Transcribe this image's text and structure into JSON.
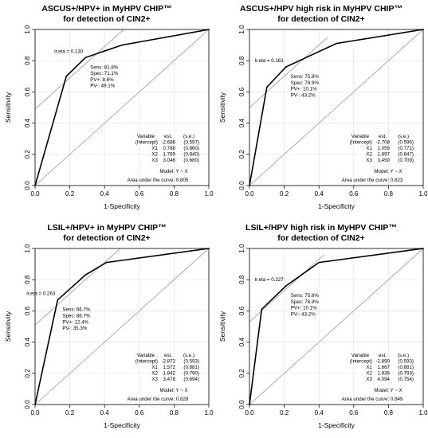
{
  "chart_data": [
    {
      "type": "line",
      "title": [
        "ASCUS+/HPV+ in MyHPV CHIP™",
        "for detection of CIN2+"
      ],
      "xlabel": "1-Specificity",
      "ylabel": "Sensitivity",
      "xlim": [
        0,
        1
      ],
      "ylim": [
        0,
        1
      ],
      "xticks": [
        "0.0",
        "0.2",
        "0.4",
        "0.6",
        "0.8",
        "1.0"
      ],
      "yticks": [
        "0.0",
        "0.2",
        "0.4",
        "0.6",
        "0.8",
        "1.0"
      ],
      "grid": true,
      "roc": {
        "x": [
          0,
          0.18,
          0.29,
          0.5,
          1.0
        ],
        "y": [
          0,
          0.7,
          0.82,
          0.9,
          1.0
        ]
      },
      "diagonal": {
        "x": [
          0,
          1
        ],
        "y": [
          0,
          1
        ]
      },
      "tangent": {
        "x": [
          0,
          0.7
        ],
        "y": [
          0.49,
          1.19
        ]
      },
      "cutoff": {
        "x": 0.29,
        "y": 0.82,
        "label": "lr.eta = 0.130",
        "stats": [
          "Sens: 81.8%",
          "Spec: 71.1%",
          "PV+: 8.6%",
          "PV-: 49.1%"
        ]
      },
      "table": {
        "header": [
          "Variable",
          "est.",
          "(s.e.)"
        ],
        "rows": [
          [
            "(Intercept)",
            "-2.686",
            "(0.597)"
          ],
          [
            "X1",
            "0.788",
            "(0.860)"
          ],
          [
            "X2",
            "1.769",
            "(0.840)"
          ],
          [
            "X3",
            "3.046",
            "(0.680)"
          ]
        ]
      },
      "model": "Model:  Y ~ X",
      "auc": "Area under the curve: 0.805"
    },
    {
      "type": "line",
      "title": [
        "ASCUS+/HPV high risk in MyHPV CHIP™",
        "for detection of CIN2+"
      ],
      "xlabel": "1-Specificity",
      "ylabel": "Sensitivity",
      "xlim": [
        0,
        1
      ],
      "ylim": [
        0,
        1
      ],
      "xticks": [
        "0.0",
        "0.2",
        "0.4",
        "0.6",
        "0.8",
        "1.0"
      ],
      "yticks": [
        "0.0",
        "0.2",
        "0.4",
        "0.6",
        "0.8",
        "1.0"
      ],
      "grid": true,
      "roc": {
        "x": [
          0,
          0.1,
          0.21,
          0.5,
          1.0
        ],
        "y": [
          0,
          0.63,
          0.76,
          0.91,
          1.0
        ]
      },
      "diagonal": {
        "x": [
          0,
          1
        ],
        "y": [
          0,
          1
        ]
      },
      "tangent": {
        "x": [
          0,
          0.45
        ],
        "y": [
          0.5,
          0.95
        ]
      },
      "cutoff": {
        "x": 0.21,
        "y": 0.76,
        "label": "lr.eta = 0.161",
        "stats": [
          "Sens: 75.8%",
          "Spec: 78.9%",
          "PV+: 10.1%",
          "PV-: 43.2%"
        ]
      },
      "table": {
        "header": [
          "Variable",
          "est.",
          "(s.e.)"
        ],
        "rows": [
          [
            "(Intercept)",
            "-2.708",
            "(0.596)"
          ],
          [
            "X1",
            "1.059",
            "(0.771)"
          ],
          [
            "X2",
            "1.897",
            "(0.847)"
          ],
          [
            "X3",
            "3.450",
            "(0.709)"
          ]
        ]
      },
      "model": "Model:  Y ~ X",
      "auc": "Area under the curve: 0.823"
    },
    {
      "type": "line",
      "title": [
        "LSIL+/HPV+ in MyHPV CHIP™",
        "for detection of CIN2+"
      ],
      "xlabel": "1-Specificity",
      "ylabel": "Sensitivity",
      "xlim": [
        0,
        1
      ],
      "ylim": [
        0,
        1
      ],
      "xticks": [
        "0.0",
        "0.2",
        "0.4",
        "0.6",
        "0.8",
        "1.0"
      ],
      "yticks": [
        "0.0",
        "0.2",
        "0.4",
        "0.6",
        "0.8",
        "1.0"
      ],
      "grid": true,
      "roc": {
        "x": [
          0,
          0.13,
          0.29,
          0.41,
          1.0
        ],
        "y": [
          0,
          0.67,
          0.83,
          0.91,
          1.0
        ]
      },
      "diagonal": {
        "x": [
          0,
          1
        ],
        "y": [
          0,
          1
        ]
      },
      "tangent": {
        "x": [
          0,
          0.49
        ],
        "y": [
          0.51,
          1.0
        ]
      },
      "cutoff": {
        "x": 0.13,
        "y": 0.67,
        "label": "lr.eta = 0.263",
        "stats": [
          "Sens: 66.7%",
          "Spec: 86.7%",
          "PV+: 12.4%",
          "PV-: 35.3%"
        ]
      },
      "table": {
        "header": [
          "Variable",
          "est.",
          "(s.e.)"
        ],
        "rows": [
          [
            "(Intercept)",
            "-2.872",
            "(0.593)"
          ],
          [
            "X1",
            "1.572",
            "(0.881)"
          ],
          [
            "X2",
            "1.842",
            "(0.790)"
          ],
          [
            "X3",
            "3.478",
            "(0.694)"
          ]
        ]
      },
      "model": "Model:  Y ~ X",
      "auc": "Area under the curve: 0.828"
    },
    {
      "type": "line",
      "title": [
        "LSIL+/HPV high risk in MyHPV CHIP™",
        "for detection of CIN2+"
      ],
      "xlabel": "1-Specificity",
      "ylabel": "Sensitivity",
      "xlim": [
        0,
        1
      ],
      "ylim": [
        0,
        1
      ],
      "xticks": [
        "0.0",
        "0.2",
        "0.4",
        "0.6",
        "0.8",
        "1.0"
      ],
      "yticks": [
        "0.0",
        "0.2",
        "0.4",
        "0.6",
        "0.8",
        "1.0"
      ],
      "grid": true,
      "roc": {
        "x": [
          0,
          0.07,
          0.21,
          0.4,
          1.0
        ],
        "y": [
          0,
          0.61,
          0.76,
          0.91,
          1.0
        ]
      },
      "diagonal": {
        "x": [
          0,
          1
        ],
        "y": [
          0,
          1
        ]
      },
      "tangent": {
        "x": [
          0,
          0.43
        ],
        "y": [
          0.53,
          0.96
        ]
      },
      "cutoff": {
        "x": 0.21,
        "y": 0.76,
        "label": "lr.eta = 0.227",
        "stats": [
          "Sens: 75.8%",
          "Spec: 78.9%",
          "PV+: 10.1%",
          "PV-: 43.2%"
        ]
      },
      "table": {
        "header": [
          "Variable",
          "est.",
          "(s.e.)"
        ],
        "rows": [
          [
            "(Intercept)",
            "-2.890",
            "(0.593)"
          ],
          [
            "X1",
            "1.667",
            "(0.881)"
          ],
          [
            "X2",
            "1.935",
            "(0.793)"
          ],
          [
            "X3",
            "4.094",
            "(0.754)"
          ]
        ]
      },
      "model": "Model:  Y ~ X",
      "auc": "Area under the curve: 0.849"
    }
  ]
}
